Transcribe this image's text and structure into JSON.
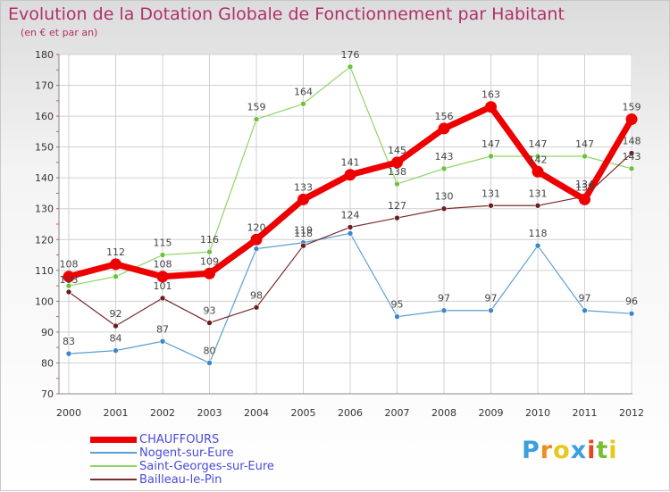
{
  "header": {
    "title": "Evolution de la Dotation Globale de Fonctionnement par Habitant",
    "subtitle": "(en € et par an)"
  },
  "logo": {
    "letters": [
      "P",
      "r",
      "o",
      "x",
      "i",
      "t",
      "i"
    ],
    "colors": [
      "#3aa0dc",
      "#f08c1e",
      "#e6c81e",
      "#3aa0dc",
      "#e6461e",
      "#78be32",
      "#e6c81e"
    ]
  },
  "chart_data": {
    "type": "line",
    "title": "Evolution de la Dotation Globale de Fonctionnement par Habitant",
    "subtitle": "(en € et par an)",
    "xlabel": "",
    "ylabel": "",
    "x": [
      "2000",
      "2001",
      "2002",
      "2003",
      "2004",
      "2005",
      "2006",
      "2007",
      "2008",
      "2009",
      "2010",
      "2011",
      "2012"
    ],
    "ylim": [
      70,
      180
    ],
    "yticks": [
      70,
      80,
      90,
      100,
      110,
      120,
      130,
      140,
      150,
      160,
      170,
      180
    ],
    "grid": true,
    "legend_position": "bottom-left",
    "series": [
      {
        "name": "Nogent-sur-Eure",
        "color": "#5a9fd4",
        "dot": "#3f86c8",
        "width": 1.2,
        "radius": 3,
        "values": [
          83,
          84,
          87,
          80,
          117,
          119,
          122,
          95,
          97,
          97,
          118,
          97,
          96
        ],
        "labels": [
          "83",
          "84",
          "87",
          "80",
          "",
          "119",
          "",
          "95",
          "97",
          "97",
          "118",
          "97",
          "96"
        ]
      },
      {
        "name": "Saint-Georges-sur-Eure",
        "color": "#8fd466",
        "dot": "#6cc23a",
        "width": 1.2,
        "radius": 3,
        "values": [
          105,
          108,
          115,
          116,
          159,
          164,
          176,
          138,
          143,
          147,
          147,
          147,
          143
        ],
        "labels": [
          "",
          "",
          "115",
          "116",
          "159",
          "164",
          "176",
          "138",
          "143",
          "147",
          "147",
          "147",
          "143"
        ]
      },
      {
        "name": "Bailleau-le-Pin",
        "color": "#7a2a2a",
        "dot": "#6a1e1e",
        "width": 1.2,
        "radius": 3,
        "values": [
          103,
          92,
          101,
          93,
          98,
          118,
          124,
          127,
          130,
          131,
          131,
          134,
          148
        ],
        "labels": [
          "103",
          "92",
          "101",
          "93",
          "98",
          "118",
          "124",
          "127",
          "130",
          "131",
          "131",
          "134",
          "148"
        ]
      },
      {
        "name": "CHAUFFOURS",
        "color": "#ee0000",
        "dot": "#ee0000",
        "width": 7,
        "radius": 6.5,
        "values": [
          108,
          112,
          108,
          109,
          120,
          133,
          141,
          145,
          156,
          163,
          142,
          133,
          159
        ],
        "labels": [
          "108",
          "112",
          "108",
          "109",
          "120",
          "133",
          "141",
          "145",
          "156",
          "163",
          "142",
          "133",
          "159"
        ]
      }
    ]
  },
  "legend": [
    {
      "name": "CHAUFFOURS",
      "color": "#ee0000",
      "thickness": 7
    },
    {
      "name": "Nogent-sur-Eure",
      "color": "#5a9fd4",
      "thickness": 2
    },
    {
      "name": "Saint-Georges-sur-Eure",
      "color": "#8fd466",
      "thickness": 2
    },
    {
      "name": "Bailleau-le-Pin",
      "color": "#7a2a2a",
      "thickness": 2
    }
  ],
  "legend_text_color": "#4a4adc"
}
